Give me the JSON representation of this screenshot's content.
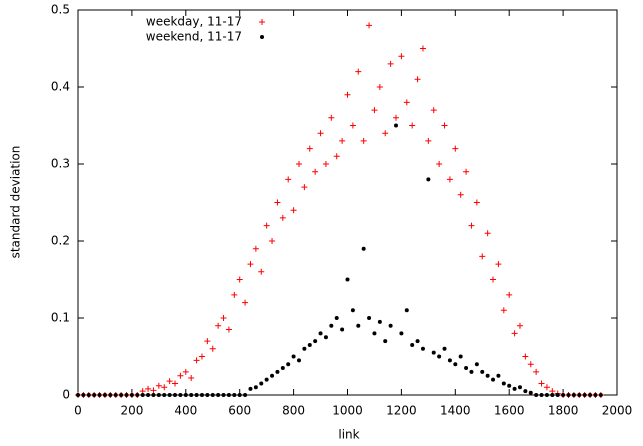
{
  "chart_data": {
    "type": "scatter",
    "xlabel": "link",
    "ylabel": "standard deviation",
    "xlim": [
      0,
      2000
    ],
    "ylim": [
      0,
      0.5
    ],
    "xticks": [
      0,
      200,
      400,
      600,
      800,
      1000,
      1200,
      1400,
      1600,
      1800,
      2000
    ],
    "yticks": [
      0,
      0.1,
      0.2,
      0.3,
      0.4,
      0.5
    ],
    "legend": "top-left",
    "x": [
      0,
      20,
      40,
      60,
      80,
      100,
      120,
      140,
      160,
      180,
      200,
      220,
      240,
      260,
      280,
      300,
      320,
      340,
      360,
      380,
      400,
      420,
      440,
      460,
      480,
      500,
      520,
      540,
      560,
      580,
      600,
      620,
      640,
      660,
      680,
      700,
      720,
      740,
      760,
      780,
      800,
      820,
      840,
      860,
      880,
      900,
      920,
      940,
      960,
      980,
      1000,
      1020,
      1040,
      1060,
      1080,
      1100,
      1120,
      1140,
      1160,
      1180,
      1200,
      1220,
      1240,
      1260,
      1280,
      1300,
      1320,
      1340,
      1360,
      1380,
      1400,
      1420,
      1440,
      1460,
      1480,
      1500,
      1520,
      1540,
      1560,
      1580,
      1600,
      1620,
      1640,
      1660,
      1680,
      1700,
      1720,
      1740,
      1760,
      1780,
      1800,
      1820,
      1840,
      1860,
      1880,
      1900,
      1920,
      1940
    ],
    "series": [
      {
        "name": "weekday, 11-17",
        "color": "#ff0000",
        "marker": "plus",
        "values": [
          0,
          0,
          0,
          0,
          0,
          0,
          0,
          0,
          0,
          0,
          0,
          0,
          0.005,
          0.008,
          0.006,
          0.012,
          0.01,
          0.018,
          0.015,
          0.025,
          0.03,
          0.022,
          0.045,
          0.05,
          0.07,
          0.06,
          0.09,
          0.1,
          0.085,
          0.13,
          0.15,
          0.12,
          0.17,
          0.19,
          0.16,
          0.22,
          0.2,
          0.25,
          0.23,
          0.28,
          0.24,
          0.3,
          0.27,
          0.32,
          0.29,
          0.34,
          0.3,
          0.36,
          0.31,
          0.33,
          0.39,
          0.35,
          0.42,
          0.33,
          0.48,
          0.37,
          0.4,
          0.34,
          0.43,
          0.36,
          0.44,
          0.38,
          0.35,
          0.41,
          0.45,
          0.33,
          0.37,
          0.3,
          0.35,
          0.28,
          0.32,
          0.26,
          0.29,
          0.22,
          0.25,
          0.18,
          0.21,
          0.15,
          0.17,
          0.11,
          0.13,
          0.08,
          0.09,
          0.05,
          0.04,
          0.03,
          0.015,
          0.01,
          0.005,
          0.002,
          0,
          0,
          0,
          0,
          0,
          0,
          0,
          0
        ]
      },
      {
        "name": "weekend, 11-17",
        "color": "#000000",
        "marker": "dot",
        "values": [
          0,
          0,
          0,
          0,
          0,
          0,
          0,
          0,
          0,
          0,
          0,
          0,
          0,
          0,
          0,
          0,
          0,
          0,
          0,
          0,
          0,
          0,
          0,
          0,
          0,
          0,
          0,
          0,
          0,
          0,
          0,
          0,
          0.008,
          0.01,
          0.015,
          0.02,
          0.025,
          0.03,
          0.035,
          0.04,
          0.05,
          0.045,
          0.06,
          0.065,
          0.07,
          0.08,
          0.075,
          0.09,
          0.1,
          0.085,
          0.15,
          0.11,
          0.09,
          0.19,
          0.1,
          0.08,
          0.095,
          0.07,
          0.09,
          0.35,
          0.08,
          0.11,
          0.065,
          0.07,
          0.06,
          0.28,
          0.055,
          0.05,
          0.06,
          0.045,
          0.04,
          0.05,
          0.035,
          0.03,
          0.04,
          0.03,
          0.025,
          0.02,
          0.025,
          0.015,
          0.012,
          0.008,
          0.01,
          0.005,
          0.003,
          0,
          0,
          0,
          0,
          0,
          0,
          0,
          0,
          0,
          0,
          0,
          0,
          0
        ]
      }
    ]
  }
}
